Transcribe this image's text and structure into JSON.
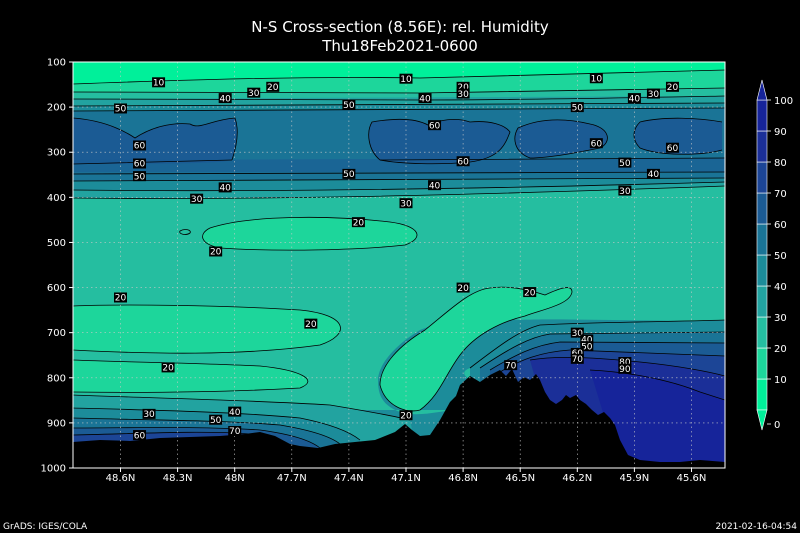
{
  "chart_data": {
    "type": "contour",
    "title": "N-S Cross-section (8.56E): rel. Humidity",
    "subtitle": "Thu18Feb2021-0600",
    "x_tick_labels": [
      "48.6N",
      "48.3N",
      "48N",
      "47.7N",
      "47.4N",
      "47.1N",
      "46.8N",
      "46.5N",
      "46.2N",
      "45.9N",
      "45.6N"
    ],
    "y_tick_labels": [
      "100",
      "200",
      "300",
      "400",
      "500",
      "600",
      "700",
      "800",
      "900",
      "1000"
    ],
    "y_axis": "pressure (hPa), inverted",
    "ylim": [
      100,
      1000
    ],
    "xlim": [
      "48.75N",
      "45.5N"
    ],
    "grid": true,
    "colorbar": {
      "levels": [
        0,
        10,
        20,
        30,
        40,
        50,
        60,
        70,
        80,
        90,
        100
      ],
      "labels": [
        "0",
        "10",
        "20",
        "30",
        "40",
        "50",
        "60",
        "70",
        "80",
        "90",
        "100"
      ],
      "colors": [
        "#00f09a",
        "#1dd69b",
        "#25bea0",
        "#22a3a0",
        "#1c8c9a",
        "#1a7496",
        "#1b5b94",
        "#1c4596",
        "#1b2f98",
        "#16249a"
      ]
    },
    "contour_labels": [
      {
        "text": "10",
        "lat": 48.4,
        "p": 145
      },
      {
        "text": "10",
        "lat": 47.1,
        "p": 137
      },
      {
        "text": "10",
        "lat": 46.1,
        "p": 136
      },
      {
        "text": "20",
        "lat": 47.8,
        "p": 155
      },
      {
        "text": "20",
        "lat": 46.8,
        "p": 155
      },
      {
        "text": "20",
        "lat": 45.7,
        "p": 155
      },
      {
        "text": "30",
        "lat": 47.9,
        "p": 168
      },
      {
        "text": "30",
        "lat": 46.8,
        "p": 170
      },
      {
        "text": "30",
        "lat": 45.8,
        "p": 170
      },
      {
        "text": "40",
        "lat": 48.05,
        "p": 180
      },
      {
        "text": "40",
        "lat": 47.0,
        "p": 180
      },
      {
        "text": "40",
        "lat": 45.9,
        "p": 180
      },
      {
        "text": "50",
        "lat": 48.6,
        "p": 203
      },
      {
        "text": "50",
        "lat": 47.4,
        "p": 195
      },
      {
        "text": "50",
        "lat": 46.2,
        "p": 200
      },
      {
        "text": "60",
        "lat": 46.95,
        "p": 240
      },
      {
        "text": "60",
        "lat": 48.5,
        "p": 285
      },
      {
        "text": "60",
        "lat": 46.1,
        "p": 280
      },
      {
        "text": "60",
        "lat": 45.7,
        "p": 290
      },
      {
        "text": "60",
        "lat": 46.8,
        "p": 320
      },
      {
        "text": "60",
        "lat": 48.5,
        "p": 325
      },
      {
        "text": "50",
        "lat": 48.5,
        "p": 353
      },
      {
        "text": "50",
        "lat": 47.4,
        "p": 348
      },
      {
        "text": "50",
        "lat": 45.95,
        "p": 323
      },
      {
        "text": "40",
        "lat": 48.05,
        "p": 378
      },
      {
        "text": "40",
        "lat": 46.95,
        "p": 373
      },
      {
        "text": "40",
        "lat": 45.8,
        "p": 348
      },
      {
        "text": "30",
        "lat": 48.2,
        "p": 403
      },
      {
        "text": "30",
        "lat": 47.1,
        "p": 413
      },
      {
        "text": "30",
        "lat": 45.95,
        "p": 385
      },
      {
        "text": "20",
        "lat": 47.35,
        "p": 455
      },
      {
        "text": "20",
        "lat": 48.1,
        "p": 520
      },
      {
        "text": "20",
        "lat": 48.6,
        "p": 622
      },
      {
        "text": "20",
        "lat": 46.8,
        "p": 600
      },
      {
        "text": "20",
        "lat": 46.45,
        "p": 610
      },
      {
        "text": "20",
        "lat": 47.6,
        "p": 680
      },
      {
        "text": "20",
        "lat": 48.35,
        "p": 777
      },
      {
        "text": "20",
        "lat": 47.1,
        "p": 883
      },
      {
        "text": "30",
        "lat": 46.2,
        "p": 700
      },
      {
        "text": "40",
        "lat": 46.15,
        "p": 715
      },
      {
        "text": "50",
        "lat": 46.15,
        "p": 730
      },
      {
        "text": "60",
        "lat": 46.2,
        "p": 745
      },
      {
        "text": "70",
        "lat": 46.2,
        "p": 758
      },
      {
        "text": "70",
        "lat": 46.55,
        "p": 772
      },
      {
        "text": "80",
        "lat": 45.95,
        "p": 765
      },
      {
        "text": "90",
        "lat": 45.95,
        "p": 780
      },
      {
        "text": "30",
        "lat": 48.45,
        "p": 880
      },
      {
        "text": "40",
        "lat": 48.0,
        "p": 875
      },
      {
        "text": "50",
        "lat": 48.1,
        "p": 893
      },
      {
        "text": "70",
        "lat": 48.0,
        "p": 918
      },
      {
        "text": "60",
        "lat": 48.5,
        "p": 927
      }
    ]
  },
  "footer": {
    "left": "GrADS: IGES/COLA",
    "right": "2021-02-16-04:54"
  }
}
